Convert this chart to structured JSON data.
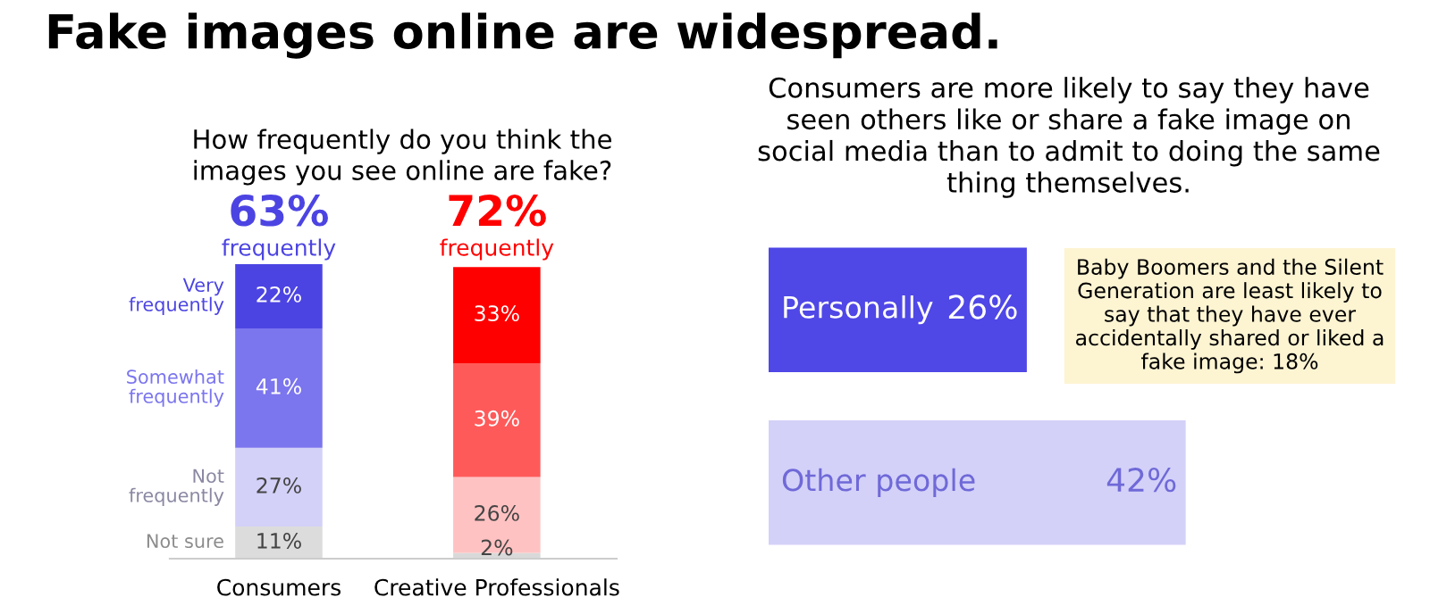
{
  "chart_data": [
    {
      "type": "bar",
      "stacked": true,
      "title": "Fake images online are widespread.",
      "subtitle": "How frequently do you think the images you see online are fake?",
      "categories": [
        "Consumers",
        "Creative Professionals"
      ],
      "series": [
        {
          "name": "Not sure",
          "colors": [
            "#dcdcdc",
            "#d9d9d9"
          ],
          "values": [
            11,
            2
          ],
          "value_labels": [
            "11%",
            "2%"
          ]
        },
        {
          "name": "Not frequently",
          "colors": [
            "#d3d1f8",
            "#ffc2c2"
          ],
          "values": [
            27,
            26
          ],
          "value_labels": [
            "27%",
            "26%"
          ]
        },
        {
          "name": "Somewhat frequently",
          "colors": [
            "#7b75ee",
            "#ff5a5a"
          ],
          "values": [
            41,
            39
          ],
          "value_labels": [
            "41%",
            "39%"
          ]
        },
        {
          "name": "Very frequently",
          "colors": [
            "#4c44e2",
            "#ff0000"
          ],
          "values": [
            22,
            33
          ],
          "value_labels": [
            "22%",
            "33%"
          ]
        }
      ],
      "annotations": [
        "63%",
        "frequently",
        "72%",
        "frequently"
      ]
    },
    {
      "type": "bar",
      "orientation": "horizontal",
      "title": "Consumers are more likely to say they have seen others like or share a fake image on social media than to admit to doing the same thing themselves.",
      "categories": [
        "Personally",
        "Other people"
      ],
      "values": [
        26,
        42
      ],
      "colors": [
        "#4f47e6",
        "#d3d1f8"
      ],
      "value_labels": [
        "26%",
        "42%"
      ],
      "annotations": [
        "Baby Boomers and the Silent Generation are least likely to say that they have ever accidentally shared or liked a fake image: 18%"
      ]
    }
  ]
}
